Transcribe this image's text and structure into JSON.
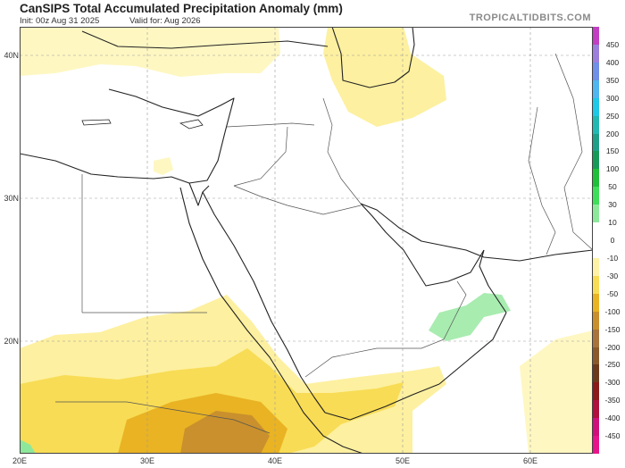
{
  "header": {
    "title": "CanSIPS Total Accumulated Precipitation Anomaly (mm)",
    "init": "Init: 00z Aug 31 2025",
    "valid": "Valid for: Aug 2026",
    "brand": "TROPICALTIDBITS.COM"
  },
  "axes": {
    "lat_labels": [
      "40N",
      "30N",
      "20N"
    ],
    "lon_labels": [
      "20E",
      "30E",
      "40E",
      "50E",
      "60E"
    ]
  },
  "legend": {
    "labels": [
      "450",
      "400",
      "350",
      "300",
      "250",
      "200",
      "150",
      "100",
      "50",
      "30",
      "10",
      "0",
      "-10",
      "-30",
      "-50",
      "-100",
      "-150",
      "-200",
      "-250",
      "-300",
      "-350",
      "-400",
      "-450"
    ],
    "colors": [
      "#c23ec2",
      "#9c7fdc",
      "#6f8fe8",
      "#4fb6f0",
      "#1ec8e6",
      "#22b9b3",
      "#1f9e88",
      "#169a5a",
      "#1fbf3a",
      "#3ede5a",
      "#8ee89b",
      "#ffffff",
      "#ffffff",
      "#fef2a6",
      "#f8dc55",
      "#e9b323",
      "#c9902d",
      "#a8743c",
      "#8a5a2a",
      "#6b3a1c",
      "#8b1a1a",
      "#b0103c",
      "#d0107a",
      "#e8148c"
    ]
  }
}
